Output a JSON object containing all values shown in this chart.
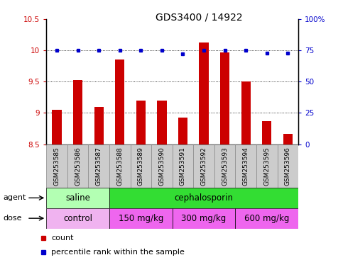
{
  "title": "GDS3400 / 14922",
  "samples": [
    "GSM253585",
    "GSM253586",
    "GSM253587",
    "GSM253588",
    "GSM253589",
    "GSM253590",
    "GSM253591",
    "GSM253592",
    "GSM253593",
    "GSM253594",
    "GSM253595",
    "GSM253596"
  ],
  "bar_values": [
    9.05,
    9.52,
    9.09,
    9.85,
    9.2,
    9.2,
    8.93,
    10.12,
    9.97,
    9.5,
    8.87,
    8.67
  ],
  "dot_values": [
    75,
    75,
    75,
    75,
    75,
    75,
    72,
    75,
    75,
    75,
    73,
    73
  ],
  "bar_color": "#cc0000",
  "dot_color": "#0000cc",
  "ylim_left": [
    8.5,
    10.5
  ],
  "ylim_right": [
    0,
    100
  ],
  "yticks_left": [
    8.5,
    9.0,
    9.5,
    10.0,
    10.5
  ],
  "ytick_labels_left": [
    "8.5",
    "9",
    "9.5",
    "10",
    "10.5"
  ],
  "yticks_right": [
    0,
    25,
    50,
    75,
    100
  ],
  "ytick_labels_right": [
    "0",
    "25",
    "50",
    "75",
    "100%"
  ],
  "grid_values": [
    9.0,
    9.5,
    10.0
  ],
  "bar_bottom": 8.5,
  "agent_groups": [
    {
      "label": "saline",
      "start": 0,
      "end": 3,
      "color": "#b3ffb3"
    },
    {
      "label": "cephalosporin",
      "start": 3,
      "end": 12,
      "color": "#33dd33"
    }
  ],
  "dose_groups": [
    {
      "label": "control",
      "start": 0,
      "end": 3,
      "color": "#f0b3f0"
    },
    {
      "label": "150 mg/kg",
      "start": 3,
      "end": 6,
      "color": "#ee66ee"
    },
    {
      "label": "300 mg/kg",
      "start": 6,
      "end": 9,
      "color": "#ee66ee"
    },
    {
      "label": "600 mg/kg",
      "start": 9,
      "end": 12,
      "color": "#ee66ee"
    }
  ],
  "legend_items": [
    {
      "label": "count",
      "color": "#cc0000"
    },
    {
      "label": "percentile rank within the sample",
      "color": "#0000cc"
    }
  ],
  "background_color": "#ffffff",
  "plot_bg_color": "#ffffff",
  "label_color_left": "#cc0000",
  "label_color_right": "#0000cc",
  "title_fontsize": 10,
  "tick_fontsize": 7.5,
  "sample_fontsize": 6.5,
  "group_fontsize": 8.5,
  "sample_bg_color": "#cccccc",
  "sample_border_color": "#888888"
}
